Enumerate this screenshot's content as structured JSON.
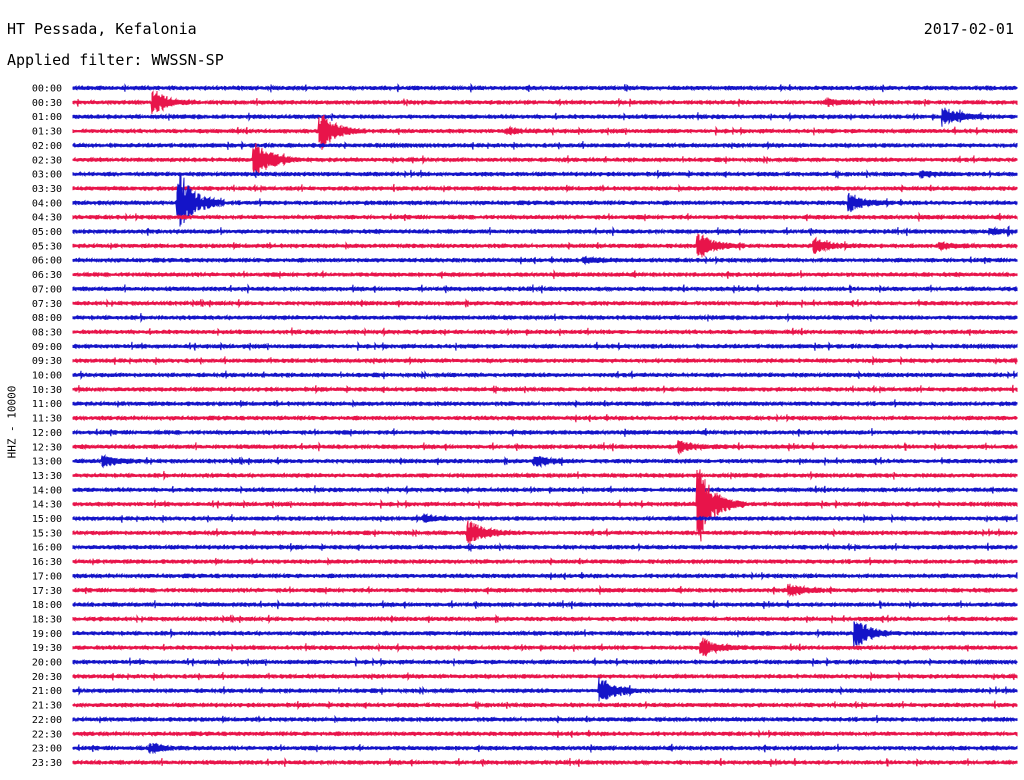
{
  "header": {
    "station": "HT Pessada, Kefalonia",
    "date": "2017-02-01",
    "filter": "Applied filter: WWSSN-SP"
  },
  "chart_data": {
    "type": "line",
    "title": "HT Pessada, Kefalonia",
    "ylabel": "HHZ - 10000",
    "colors": [
      "#1414c8",
      "#e8144a"
    ],
    "row_labels": [
      "00:00",
      "00:30",
      "01:00",
      "01:30",
      "02:00",
      "02:30",
      "03:00",
      "03:30",
      "04:00",
      "04:30",
      "05:00",
      "05:30",
      "06:00",
      "06:30",
      "07:00",
      "07:30",
      "08:00",
      "08:30",
      "09:00",
      "09:30",
      "10:00",
      "10:30",
      "11:00",
      "11:30",
      "12:00",
      "12:30",
      "13:00",
      "13:30",
      "14:00",
      "14:30",
      "15:00",
      "15:30",
      "16:00",
      "16:30",
      "17:00",
      "17:30",
      "18:00",
      "18:30",
      "19:00",
      "19:30",
      "20:00",
      "20:30",
      "21:00",
      "21:30",
      "22:00",
      "22:30",
      "23:00",
      "23:30"
    ],
    "x_range_minutes": [
      0,
      30
    ],
    "events": [
      {
        "row": 1,
        "minute": 2.6,
        "amp": 1.1
      },
      {
        "row": 1,
        "minute": 24.0,
        "amp": 0.3
      },
      {
        "row": 2,
        "minute": 27.7,
        "amp": 0.9
      },
      {
        "row": 3,
        "minute": 7.9,
        "amp": 1.8
      },
      {
        "row": 3,
        "minute": 13.8,
        "amp": 0.3
      },
      {
        "row": 5,
        "minute": 5.8,
        "amp": 2.2
      },
      {
        "row": 6,
        "minute": 27.0,
        "amp": 0.25
      },
      {
        "row": 8,
        "minute": 3.4,
        "amp": 3.0
      },
      {
        "row": 8,
        "minute": 24.7,
        "amp": 0.9
      },
      {
        "row": 10,
        "minute": 29.2,
        "amp": 0.3
      },
      {
        "row": 11,
        "minute": 19.9,
        "amp": 1.2
      },
      {
        "row": 11,
        "minute": 23.6,
        "amp": 0.6
      },
      {
        "row": 11,
        "minute": 27.6,
        "amp": 0.3
      },
      {
        "row": 12,
        "minute": 16.3,
        "amp": 0.25
      },
      {
        "row": 25,
        "minute": 19.3,
        "amp": 0.5
      },
      {
        "row": 26,
        "minute": 1.0,
        "amp": 0.5
      },
      {
        "row": 26,
        "minute": 14.7,
        "amp": 0.5
      },
      {
        "row": 29,
        "minute": 19.9,
        "amp": 4.2
      },
      {
        "row": 30,
        "minute": 11.2,
        "amp": 0.35
      },
      {
        "row": 31,
        "minute": 12.6,
        "amp": 1.3
      },
      {
        "row": 35,
        "minute": 22.8,
        "amp": 0.6
      },
      {
        "row": 38,
        "minute": 24.9,
        "amp": 1.4
      },
      {
        "row": 39,
        "minute": 20.0,
        "amp": 0.9
      },
      {
        "row": 42,
        "minute": 16.8,
        "amp": 1.3
      },
      {
        "row": 46,
        "minute": 2.5,
        "amp": 0.4
      }
    ]
  }
}
